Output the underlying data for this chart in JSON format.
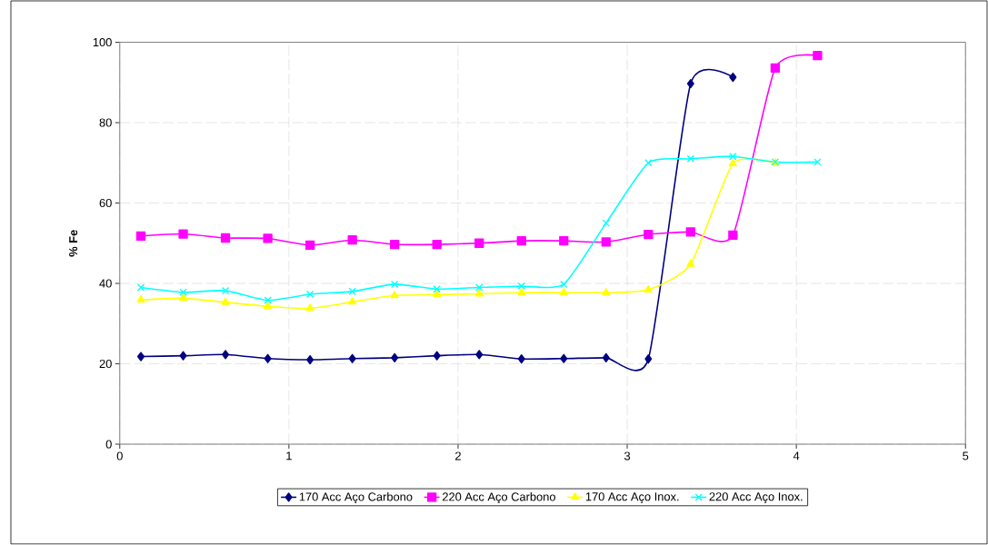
{
  "chart_data": {
    "type": "line",
    "ylabel": "% Fe",
    "xlim": [
      0,
      5
    ],
    "ylim": [
      0,
      100
    ],
    "xticks": [
      0,
      1,
      2,
      3,
      4,
      5
    ],
    "yticks": [
      0,
      20,
      40,
      60,
      80,
      100
    ],
    "grid": true,
    "legend": "bottom",
    "line_style": "solid",
    "series": [
      {
        "name": "170 Acc Aço Carbono",
        "color": "#000080",
        "marker": "diamond",
        "x": [
          0.125,
          0.375,
          0.625,
          0.875,
          1.125,
          1.375,
          1.625,
          1.875,
          2.125,
          2.375,
          2.625,
          2.875,
          3.125,
          3.375,
          3.625
        ],
        "values": [
          21.8,
          22.0,
          22.3,
          21.3,
          21.0,
          21.3,
          21.5,
          22.0,
          22.3,
          21.2,
          21.3,
          21.5,
          21.2,
          89.7,
          91.3
        ]
      },
      {
        "name": "220 Acc Aço Carbono",
        "color": "#ff00ff",
        "marker": "square",
        "x": [
          0.125,
          0.375,
          0.625,
          0.875,
          1.125,
          1.375,
          1.625,
          1.875,
          2.125,
          2.375,
          2.625,
          2.875,
          3.125,
          3.375,
          3.625,
          3.875,
          4.125
        ],
        "values": [
          51.8,
          52.3,
          51.3,
          51.2,
          49.5,
          50.8,
          49.7,
          49.7,
          50.0,
          50.6,
          50.6,
          50.3,
          52.2,
          52.8,
          52.0,
          93.6,
          96.7
        ]
      },
      {
        "name": "170 Acc Aço Inox.",
        "color": "#ffff00",
        "marker": "triangle",
        "x": [
          0.125,
          0.375,
          0.625,
          0.875,
          1.125,
          1.375,
          1.625,
          1.875,
          2.125,
          2.375,
          2.625,
          2.875,
          3.125,
          3.375,
          3.625,
          3.875
        ],
        "values": [
          35.9,
          36.3,
          35.3,
          34.3,
          33.8,
          35.4,
          37.0,
          37.2,
          37.4,
          37.7,
          37.7,
          37.7,
          38.4,
          44.8,
          69.8,
          70.0
        ]
      },
      {
        "name": "220 Acc Aço Inox.",
        "color": "#00ffff",
        "marker": "cross",
        "x": [
          0.125,
          0.375,
          0.625,
          0.875,
          1.125,
          1.375,
          1.625,
          1.875,
          2.125,
          2.375,
          2.625,
          2.875,
          3.125,
          3.375,
          3.625,
          3.875,
          4.125
        ],
        "values": [
          39.0,
          37.8,
          38.2,
          35.8,
          37.3,
          38.0,
          39.8,
          38.6,
          39.0,
          39.3,
          39.8,
          55.0,
          70.0,
          71.0,
          71.6,
          70.2,
          70.2
        ]
      }
    ]
  }
}
